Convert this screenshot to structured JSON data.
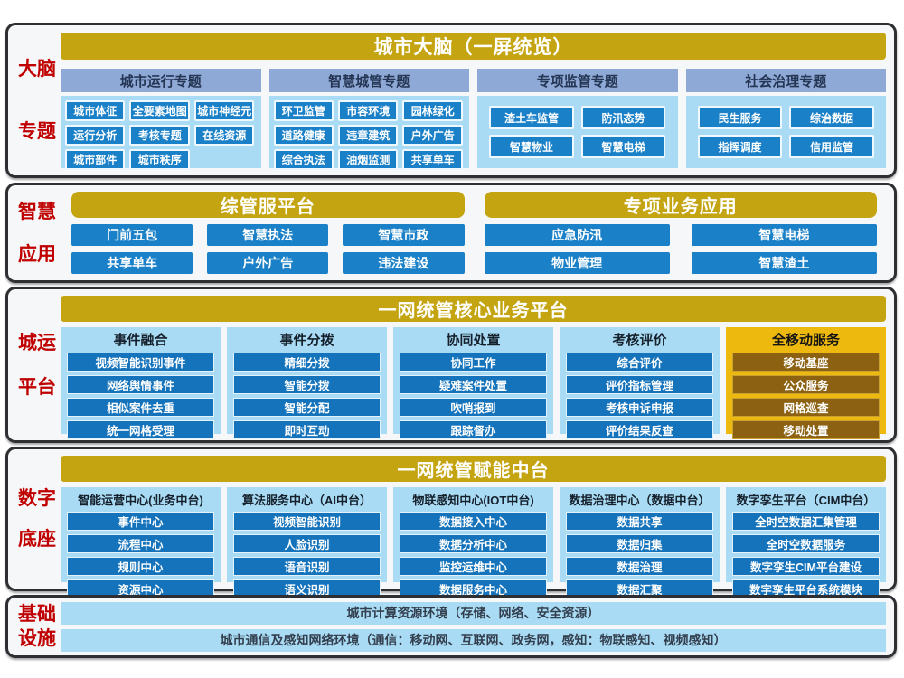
{
  "palette": {
    "gold_header": "#C4A511",
    "gold_highlight_panel": "#EEB90E",
    "brown_button": "#8C6212",
    "blue_button": "#1A80C8",
    "deep_blue_button": "#1573BC",
    "light_blue_panel": "#A9DCF4",
    "steel_blue_header": "#8FA9D6",
    "red_side_label": "#C00000",
    "band_border": "#2E2F33"
  },
  "brain": {
    "label": [
      "大脑",
      "专题"
    ],
    "header": "城市大脑（一屏统览）",
    "columns": [
      {
        "title": "城市运行专题",
        "buttons": [
          "城市体征",
          "全要素地图",
          "城市神经元",
          "运行分析",
          "考核专题",
          "在线资源",
          "城市部件",
          "城市秩序"
        ]
      },
      {
        "title": "智慧城管专题",
        "buttons": [
          "环卫监管",
          "市容环境",
          "园林绿化",
          "道路健康",
          "违章建筑",
          "户外广告",
          "综合执法",
          "油烟监测",
          "共享单车"
        ]
      },
      {
        "title": "专项监管专题",
        "buttons": [
          "渣土车监管",
          "防汛态势",
          "智慧物业",
          "智慧电梯"
        ]
      },
      {
        "title": "社会治理专题",
        "buttons": [
          "民生服务",
          "综治数据",
          "指挥调度",
          "信用监管"
        ]
      }
    ]
  },
  "apps": {
    "label": [
      "智慧",
      "应用"
    ],
    "sections": [
      {
        "header": "综管服平台",
        "buttons": [
          "门前五包",
          "智慧执法",
          "智慧市政",
          "共享单车",
          "户外广告",
          "违法建设"
        ]
      },
      {
        "header": "专项业务应用",
        "buttons": [
          "应急防汛",
          "智慧电梯",
          "物业管理",
          "智慧渣土"
        ]
      }
    ]
  },
  "core": {
    "label": [
      "城运",
      "平台"
    ],
    "header": "一网统管核心业务平台",
    "dots": "......",
    "columns": [
      {
        "title": "事件融合",
        "buttons": [
          "视频智能识别事件",
          "网络舆情事件",
          "相似案件去重",
          "统一网格受理"
        ]
      },
      {
        "title": "事件分拨",
        "buttons": [
          "精细分拨",
          "智能分拨",
          "智能分配",
          "即时互动"
        ]
      },
      {
        "title": "协同处置",
        "buttons": [
          "协同工作",
          "疑难案件处置",
          "吹哨报到",
          "跟踪督办"
        ]
      },
      {
        "title": "考核评价",
        "buttons": [
          "综合评价",
          "评价指标管理",
          "考核申诉申报",
          "评价结果反查"
        ]
      },
      {
        "title": "全移动服务",
        "buttons": [
          "移动基座",
          "公众服务",
          "网格巡查",
          "移动处置"
        ]
      }
    ]
  },
  "mid": {
    "label": [
      "数字",
      "底座"
    ],
    "header": "一网统管赋能中台",
    "columns": [
      {
        "title": "智能运营中心(业务中台)",
        "buttons": [
          "事件中心",
          "流程中心",
          "规则中心",
          "资源中心"
        ]
      },
      {
        "title": "算法服务中心（AI中台）",
        "buttons": [
          "视频智能识别",
          "人脸识别",
          "语音识别",
          "语义识别"
        ]
      },
      {
        "title": "物联感知中心(IOT中台)",
        "buttons": [
          "数据接入中心",
          "数据分析中心",
          "监控运维中心",
          "数据服务中心"
        ]
      },
      {
        "title": "数据治理中心（数据中台）",
        "buttons": [
          "数据共享",
          "数据归集",
          "数据治理",
          "数据汇聚"
        ]
      },
      {
        "title": "数字孪生平台（CIM中台）",
        "buttons": [
          "全时空数据汇集管理",
          "全时空数据服务",
          "数字孪生CIM平台建设",
          "数字孪生平台系统模块"
        ]
      }
    ]
  },
  "infra": {
    "label": [
      "基础",
      "设施"
    ],
    "bars": [
      "城市计算资源环境（存储、网络、安全资源）",
      "城市通信及感知网络环境（通信：移动网、互联网、政务网，感知：物联感知、视频感知）"
    ]
  }
}
